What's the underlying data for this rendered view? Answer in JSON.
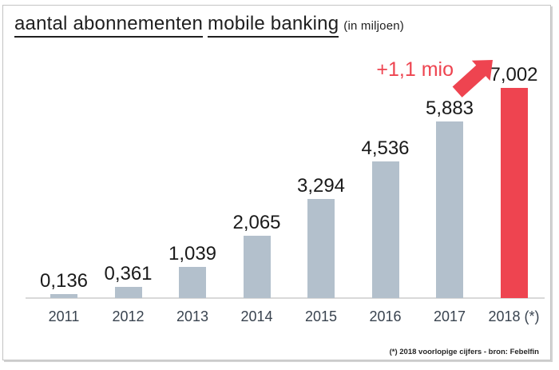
{
  "header": {
    "title_main": "aantal abonnementen",
    "title_main2": "mobile banking",
    "subtitle": "(in miljoen)"
  },
  "annotation": {
    "delta_label": "+1,1 mio"
  },
  "footnote": "(*) 2018 voorlopige  cijfers - bron: Febelfin",
  "colors": {
    "bar_default": "#b3c0cc",
    "bar_highlight": "#ee4450",
    "annotation_red": "#ee4450",
    "axis_line": "#d9d9d9",
    "value_label": "#1a1a1a",
    "year_label": "#39434f"
  },
  "chart_data": {
    "type": "bar",
    "title": "aantal abonnementen mobile banking (in miljoen)",
    "categories": [
      "2011",
      "2012",
      "2013",
      "2014",
      "2015",
      "2016",
      "2017",
      "2018 (*)"
    ],
    "values": [
      0.136,
      0.361,
      1.039,
      2.065,
      3.294,
      4.536,
      5.883,
      7.002
    ],
    "value_labels": [
      "0,136",
      "0,361",
      "1,039",
      "2,065",
      "3,294",
      "4,536",
      "5,883",
      "7,002"
    ],
    "highlight_index": 7,
    "xlabel": "",
    "ylabel": "",
    "ylim": [
      0,
      7.5
    ],
    "grid": false,
    "legend": false,
    "annotation": "+1,1 mio increase from 2017 to 2018, red arrow pointing to highlighted 2018 bar"
  }
}
